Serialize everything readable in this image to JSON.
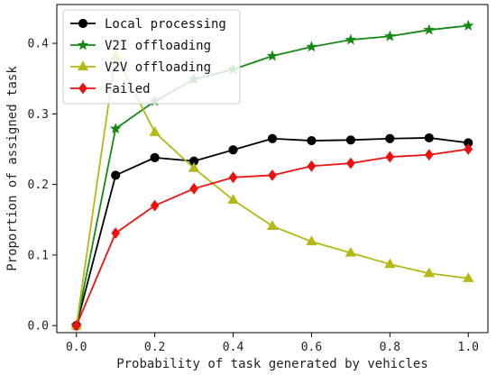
{
  "chart_data": {
    "type": "line",
    "title": "",
    "xlabel": "Probability of task generated by vehicles",
    "ylabel": "Proportion of assigned task",
    "x": [
      0.0,
      0.1,
      0.2,
      0.3,
      0.4,
      0.5,
      0.6,
      0.7,
      0.8,
      0.9,
      1.0
    ],
    "xlim": [
      -0.05,
      1.05
    ],
    "ylim": [
      -0.01,
      0.455
    ],
    "xticks": [
      0.0,
      0.2,
      0.4,
      0.6,
      0.8,
      1.0
    ],
    "xtick_labels": [
      "0.0",
      "0.2",
      "0.4",
      "0.6",
      "0.8",
      "1.0"
    ],
    "yticks": [
      0.0,
      0.1,
      0.2,
      0.3,
      0.4
    ],
    "ytick_labels": [
      "0.0",
      "0.1",
      "0.2",
      "0.3",
      "0.4"
    ],
    "grid": false,
    "legend_position": "top-left",
    "series": [
      {
        "name": "Local processing",
        "color": "#000000",
        "marker": "circle",
        "values": [
          0.0,
          0.213,
          0.238,
          0.233,
          0.249,
          0.265,
          0.262,
          0.263,
          0.265,
          0.266,
          0.259
        ]
      },
      {
        "name": "V2I offloading",
        "color": "#138a13",
        "marker": "star",
        "values": [
          0.0,
          0.279,
          0.318,
          0.349,
          0.363,
          0.382,
          0.395,
          0.405,
          0.41,
          0.419,
          0.425
        ]
      },
      {
        "name": "V2V offloading",
        "color": "#b5b814",
        "marker": "triangle",
        "values": [
          0.0,
          0.383,
          0.274,
          0.223,
          0.178,
          0.141,
          0.119,
          0.103,
          0.087,
          0.074,
          0.067
        ]
      },
      {
        "name": "Failed",
        "color": "#ee1111",
        "marker": "diamond",
        "values": [
          0.0,
          0.131,
          0.17,
          0.194,
          0.21,
          0.213,
          0.226,
          0.23,
          0.239,
          0.242,
          0.25
        ]
      }
    ]
  }
}
